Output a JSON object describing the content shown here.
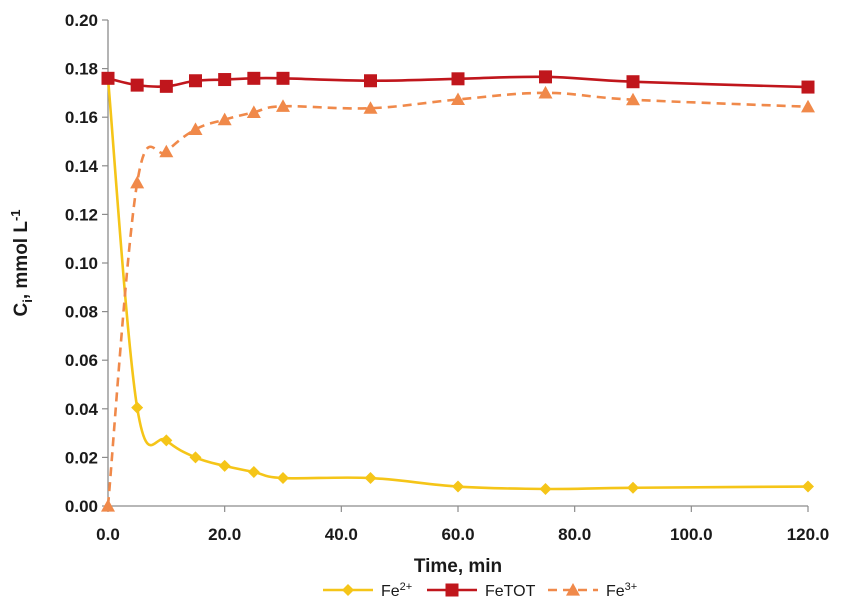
{
  "chart_data": {
    "type": "line",
    "xlabel": "Time, min",
    "ylabel_main": "C",
    "ylabel_sub": "i",
    "ylabel_rest": ", mmol L",
    "ylabel_sup": "-1",
    "xlim": [
      0,
      120
    ],
    "ylim": [
      0,
      0.2
    ],
    "x_ticks": [
      "0.0",
      "20.0",
      "40.0",
      "60.0",
      "80.0",
      "100.0",
      "120.0"
    ],
    "y_ticks": [
      "0.00",
      "0.02",
      "0.04",
      "0.06",
      "0.08",
      "0.10",
      "0.12",
      "0.14",
      "0.16",
      "0.18",
      "0.20"
    ],
    "grid": false,
    "legend_position": "bottom",
    "series": [
      {
        "name": "Fe2+",
        "label_base": "Fe",
        "label_sup": "2+",
        "color": "#F5C518",
        "marker": "diamond",
        "dash": false,
        "x": [
          0,
          5,
          10,
          15,
          20,
          25,
          30,
          45,
          60,
          75,
          90,
          120
        ],
        "y": [
          0.176,
          0.0405,
          0.027,
          0.02,
          0.0165,
          0.014,
          0.0115,
          0.0115,
          0.008,
          0.007,
          0.0075,
          0.008
        ]
      },
      {
        "name": "FeTOT",
        "label_base": "FeTOT",
        "label_sup": "",
        "color": "#C0161C",
        "marker": "square",
        "dash": false,
        "x": [
          0,
          5,
          10,
          15,
          20,
          25,
          30,
          45,
          60,
          75,
          90,
          120
        ],
        "y": [
          0.176,
          0.1732,
          0.1727,
          0.175,
          0.1755,
          0.176,
          0.176,
          0.175,
          0.1758,
          0.1766,
          0.1746,
          0.1724
        ]
      },
      {
        "name": "Fe3+",
        "label_base": "Fe",
        "label_sup": "3+",
        "color": "#F0894A",
        "marker": "triangle",
        "dash": true,
        "x": [
          0,
          5,
          10,
          15,
          20,
          25,
          30,
          45,
          60,
          75,
          90,
          120
        ],
        "y": [
          0.0,
          0.133,
          0.1458,
          0.155,
          0.159,
          0.162,
          0.1645,
          0.1637,
          0.1673,
          0.17,
          0.1672,
          0.1643
        ]
      }
    ]
  }
}
